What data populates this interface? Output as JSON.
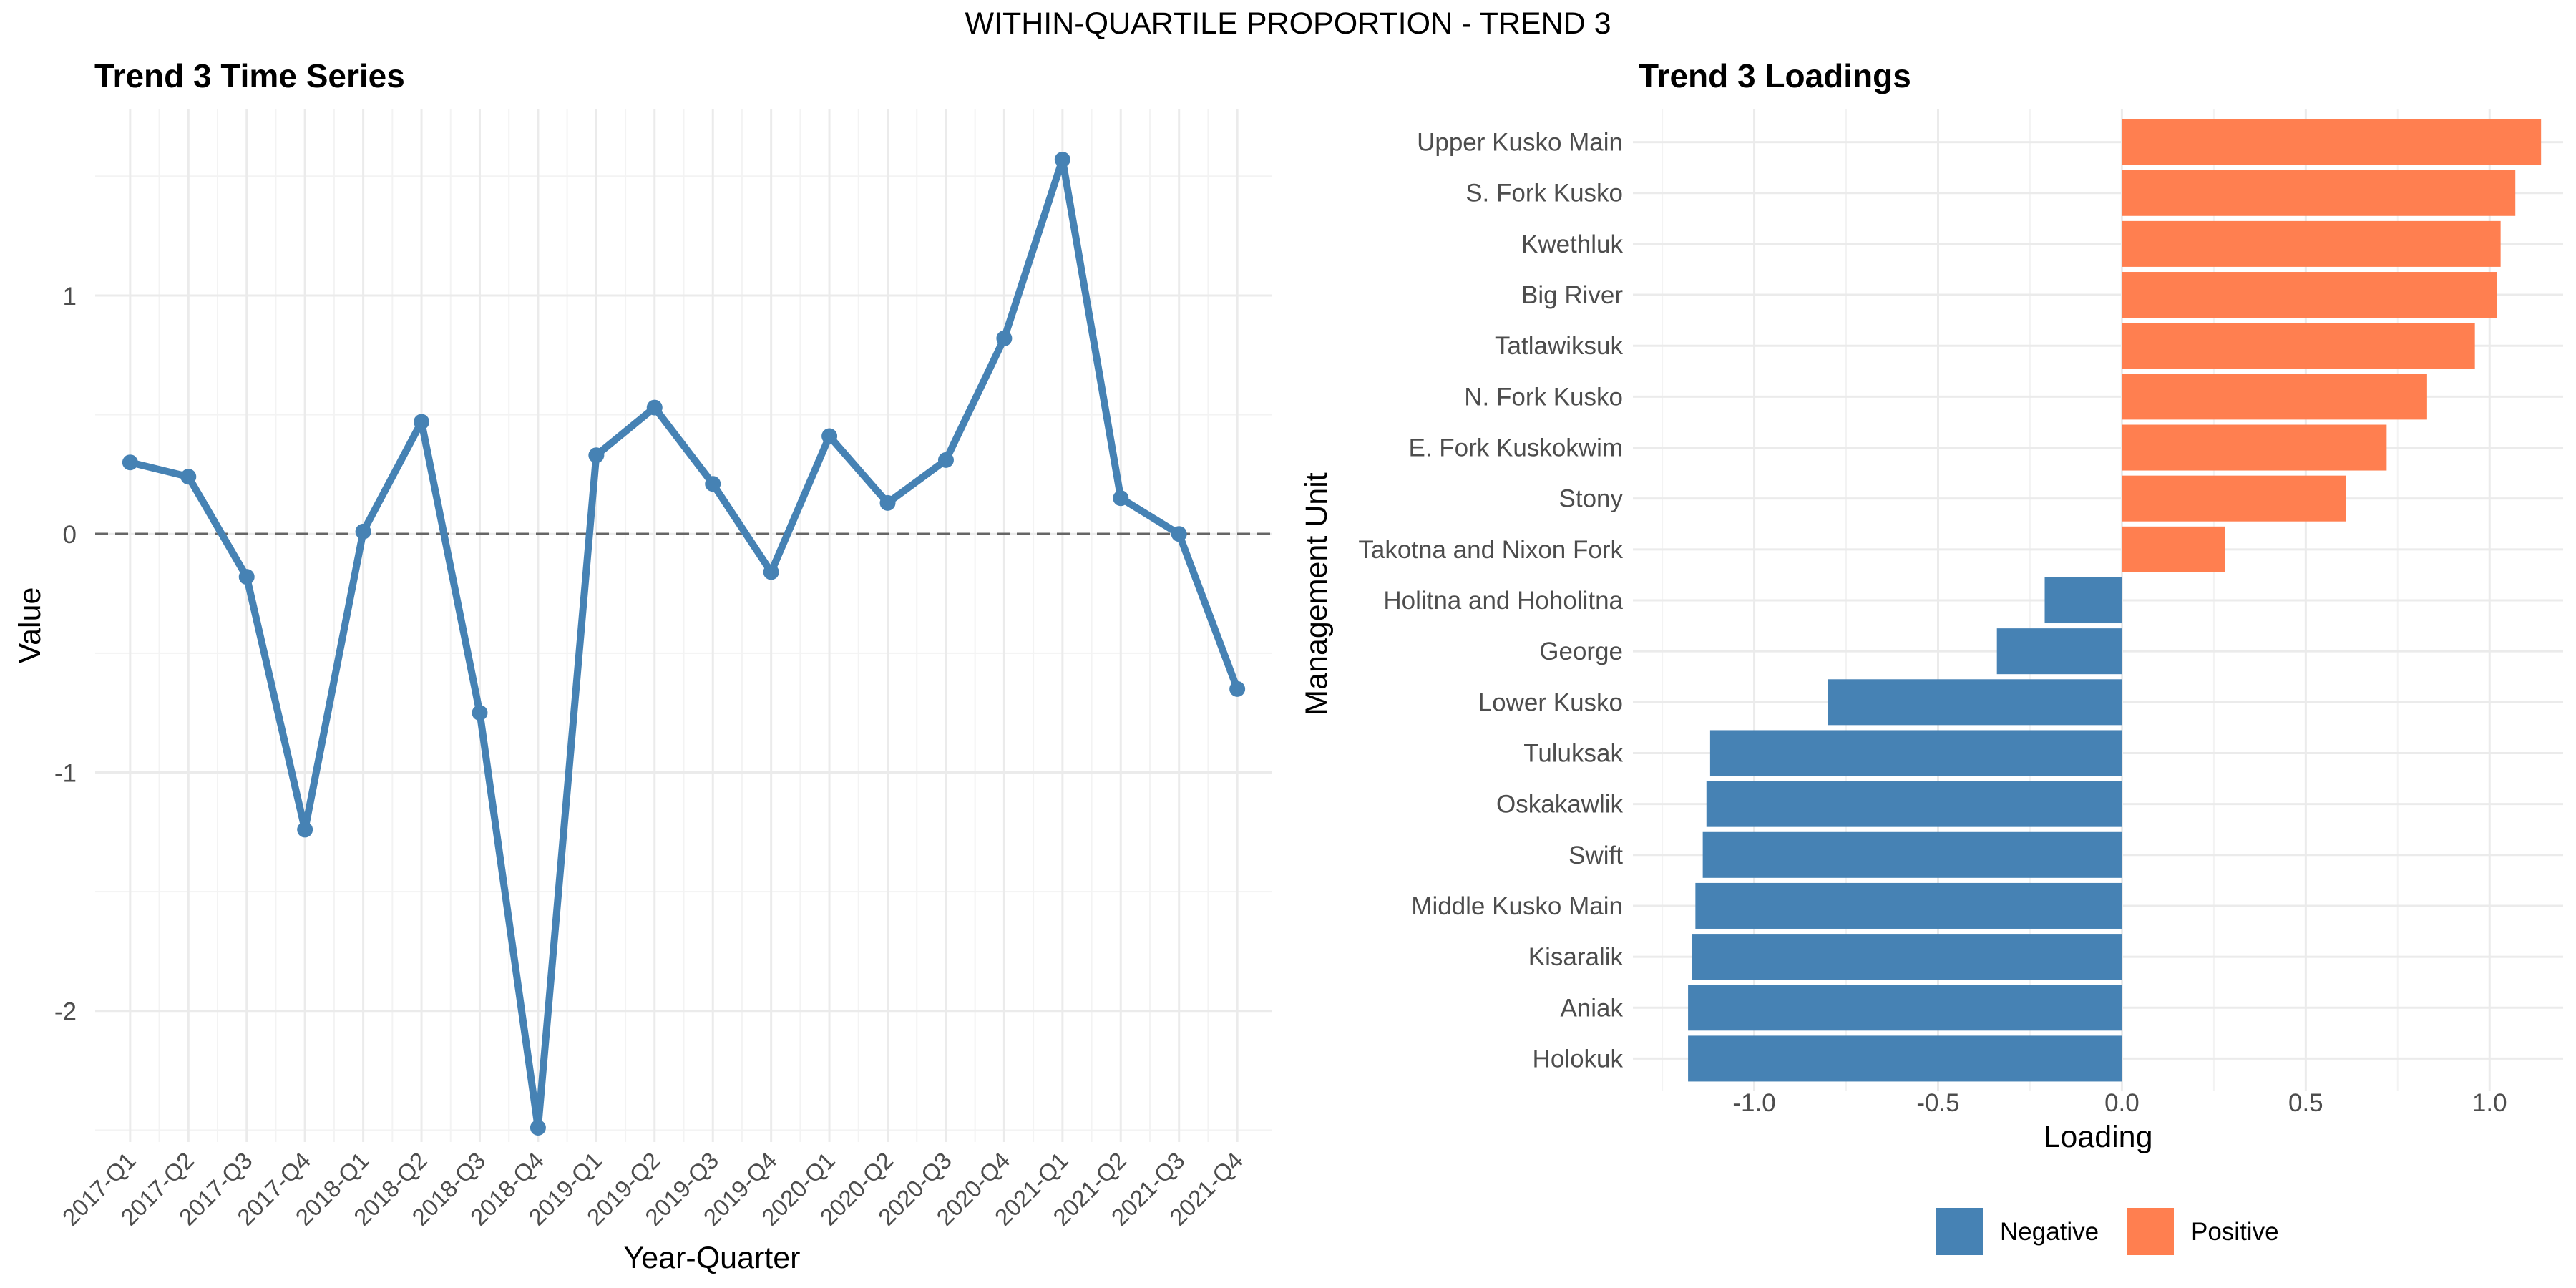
{
  "suptitle": "WITHIN-QUARTILE PROPORTION - TREND 3",
  "chart_data": [
    {
      "type": "line",
      "title": "Trend 3 Time Series",
      "xlabel": "Year-Quarter",
      "ylabel": "Value",
      "categories": [
        "2017-Q1",
        "2017-Q2",
        "2017-Q3",
        "2017-Q4",
        "2018-Q1",
        "2018-Q2",
        "2018-Q3",
        "2018-Q4",
        "2019-Q1",
        "2019-Q2",
        "2019-Q3",
        "2019-Q4",
        "2020-Q1",
        "2020-Q2",
        "2020-Q3",
        "2020-Q4",
        "2021-Q1",
        "2021-Q2",
        "2021-Q3",
        "2021-Q4"
      ],
      "series": [
        {
          "values": [
            0.3,
            0.24,
            -0.18,
            -1.24,
            0.01,
            0.47,
            -0.75,
            -2.49,
            0.33,
            0.53,
            0.21,
            -0.16,
            0.41,
            0.13,
            0.31,
            0.82,
            1.57,
            0.15,
            0.0,
            -0.65
          ]
        }
      ],
      "ylim": [
        -2.55,
        1.78
      ],
      "yticks": [
        -2,
        -1,
        0,
        1
      ],
      "ytick_labels": [
        "-2",
        "-1",
        "0",
        "1"
      ],
      "reference_line": 0,
      "grid": true,
      "color": "#4682B4"
    },
    {
      "type": "bar",
      "orientation": "horizontal",
      "title": "Trend 3 Loadings",
      "xlabel": "Loading",
      "ylabel": "Management Unit",
      "categories": [
        "Upper Kusko Main",
        "S. Fork Kusko",
        "Kwethluk",
        "Big River",
        "Tatlawiksuk",
        "N. Fork Kusko",
        "E. Fork Kuskokwim",
        "Stony",
        "Takotna and Nixon Fork",
        "Holitna and Hoholitna",
        "George",
        "Lower Kusko",
        "Tuluksak",
        "Oskakawlik",
        "Swift",
        "Middle Kusko Main",
        "Kisaralik",
        "Aniak",
        "Holokuk"
      ],
      "values": [
        1.14,
        1.07,
        1.03,
        1.02,
        0.96,
        0.83,
        0.72,
        0.61,
        0.28,
        -0.21,
        -0.34,
        -0.8,
        -1.12,
        -1.13,
        -1.14,
        -1.16,
        -1.17,
        -1.18,
        -1.18
      ],
      "xlim": [
        -1.33,
        1.2
      ],
      "xticks": [
        -1.0,
        -0.5,
        0.0,
        0.5,
        1.0
      ],
      "xtick_labels": [
        "-1.0",
        "-0.5",
        "0.0",
        "0.5",
        "1.0"
      ],
      "grid": true,
      "legend": {
        "position": "bottom",
        "entries": [
          {
            "label": "Negative",
            "color": "#4682B4"
          },
          {
            "label": "Positive",
            "color": "#FF7F50"
          }
        ]
      }
    }
  ]
}
